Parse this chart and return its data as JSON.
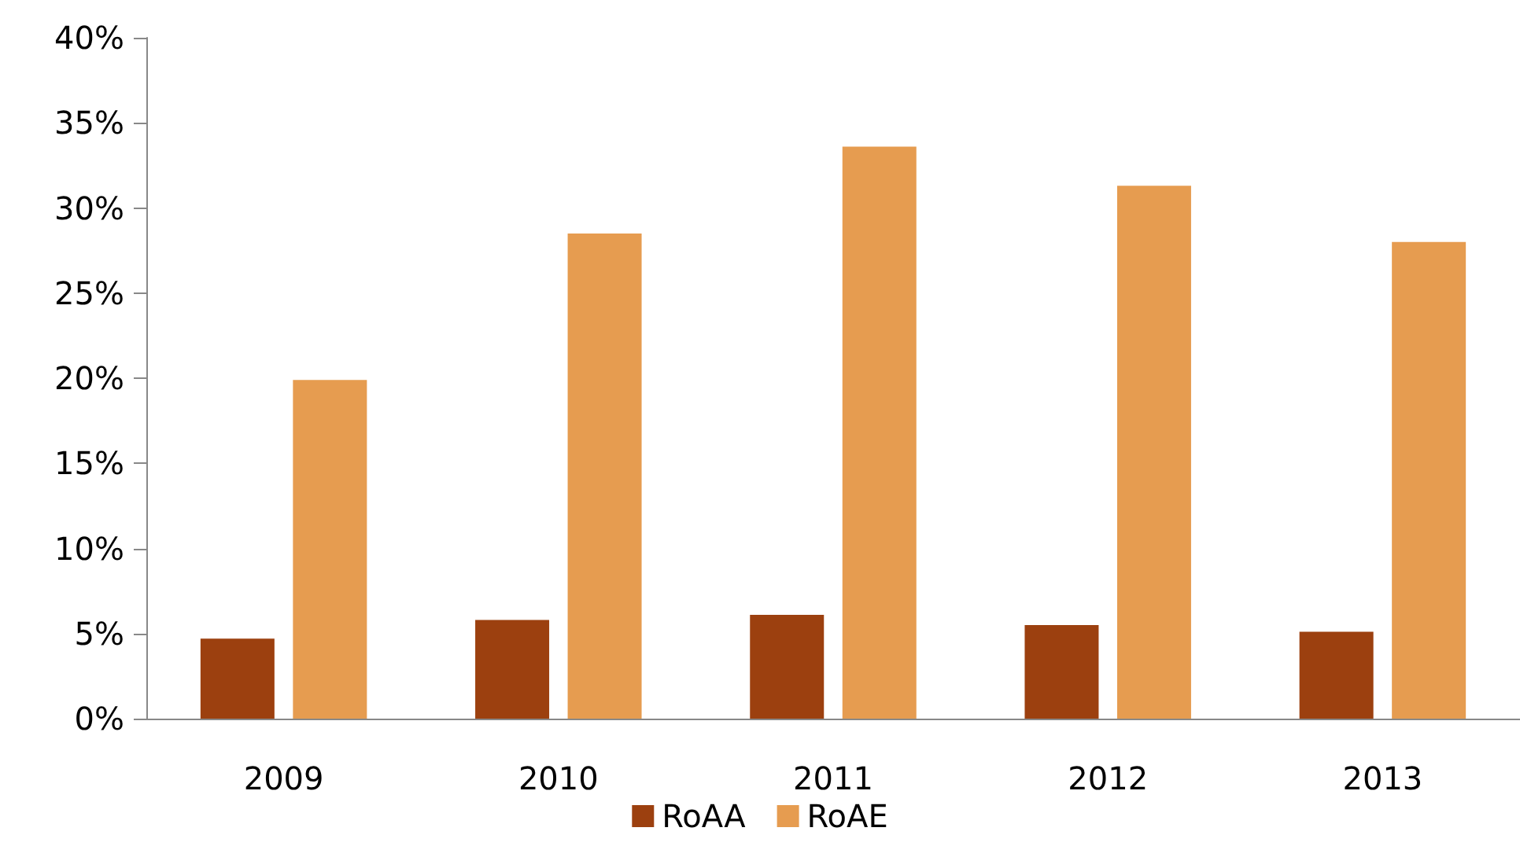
{
  "chart_data": {
    "type": "bar",
    "categories": [
      "2009",
      "2010",
      "2011",
      "2012",
      "2013"
    ],
    "series": [
      {
        "name": "RoAA",
        "color": "#9c400f",
        "values": [
          4.7,
          5.8,
          6.1,
          5.5,
          5.1
        ]
      },
      {
        "name": "RoAE",
        "color": "#e69c50",
        "values": [
          19.9,
          28.5,
          33.6,
          31.3,
          28.0
        ]
      }
    ],
    "ylim": [
      0,
      40
    ],
    "yticks": [
      {
        "value": 0,
        "label": "0%"
      },
      {
        "value": 5,
        "label": "5%"
      },
      {
        "value": 10,
        "label": "10%"
      },
      {
        "value": 15,
        "label": "15%"
      },
      {
        "value": 20,
        "label": "20%"
      },
      {
        "value": 25,
        "label": "25%"
      },
      {
        "value": 30,
        "label": "30%"
      },
      {
        "value": 35,
        "label": "35%"
      },
      {
        "value": 40,
        "label": "40%"
      }
    ],
    "grid": false,
    "legend": "bottom"
  }
}
